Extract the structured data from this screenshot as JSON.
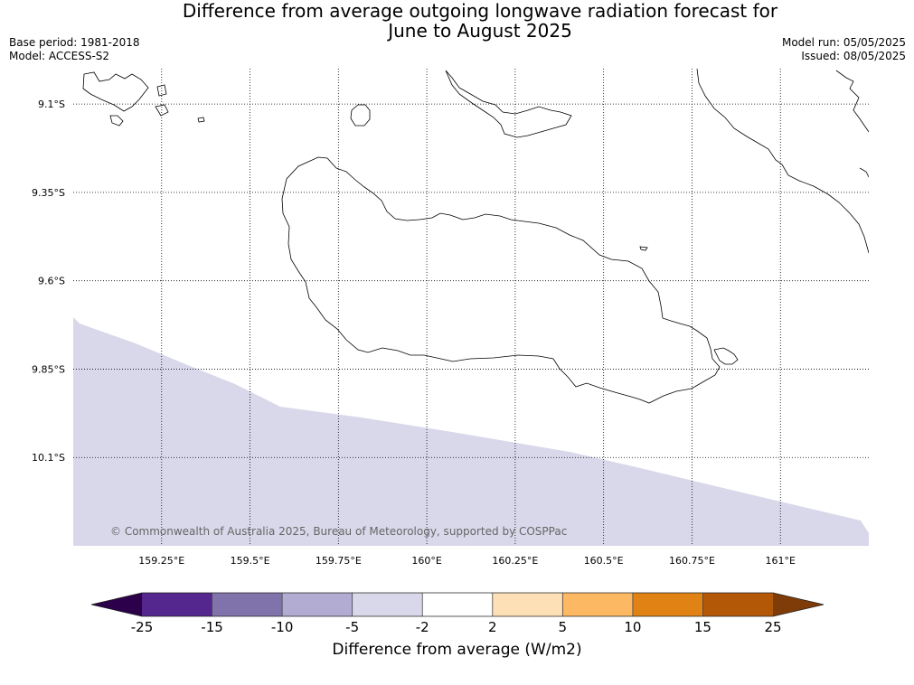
{
  "title": {
    "line1": "Difference from average outgoing longwave radiation forecast for",
    "line2": "June to August 2025"
  },
  "meta_left": {
    "base_period": "Base period: 1981-2018",
    "model": "Model: ACCESS-S2"
  },
  "meta_right": {
    "model_run": "Model run: 05/05/2025",
    "issued": "Issued: 08/05/2025"
  },
  "map": {
    "lon_ticks": [
      "159.25°E",
      "159.5°E",
      "159.75°E",
      "160°E",
      "160.25°E",
      "160.5°E",
      "160.75°E",
      "161°E"
    ],
    "lat_ticks": [
      "9.1°S",
      "9.35°S",
      "9.6°S",
      "9.85°S",
      "10.1°S"
    ],
    "lon_range": [
      159.0,
      161.25
    ],
    "lat_range": [
      -9.0,
      -10.35
    ],
    "copyright": "© Commonwealth of Australia 2025, Bureau of Meteorology, supported by COSPPac",
    "shaded_category": "-5 to -2",
    "shaded_color": "#d8d8ea",
    "coastline_color": "#000000"
  },
  "colorbar": {
    "label": "Difference from average (W/m2)",
    "ticks": [
      "-25",
      "-15",
      "-10",
      "-5",
      "-2",
      "2",
      "5",
      "10",
      "15",
      "25"
    ],
    "colors": [
      "#54278f",
      "#8073ac",
      "#b2abd2",
      "#d8d8ea",
      "#ffffff",
      "#fee0b6",
      "#fdb863",
      "#e08214",
      "#b35806"
    ],
    "under_color": "#2d004b",
    "over_color": "#7f3b08"
  }
}
